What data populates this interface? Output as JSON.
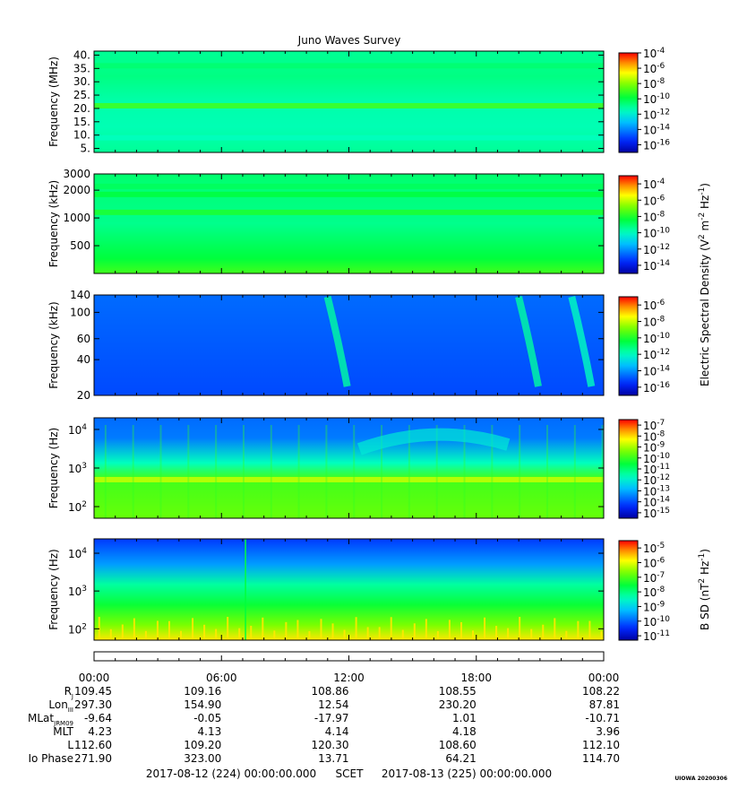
{
  "title": "Juno Waves Survey",
  "colors": {
    "low": "#0000b0",
    "mid": "#00ff40",
    "high": "#ff0000"
  },
  "chart_data": [
    {
      "type": "heatmap",
      "ylabel": "Frequency (MHz)",
      "ylim": [
        3.5,
        41.5
      ],
      "yticks": [
        "5.",
        "10.",
        "15.",
        "20.",
        "25.",
        "30.",
        "35.",
        "40."
      ],
      "ytick_values": [
        5,
        10,
        15,
        20,
        25,
        30,
        35,
        40
      ],
      "yscale": "linear",
      "colorbar": {
        "ticks": [
          "10",
          "10",
          "10",
          "10",
          "10",
          "10",
          "10"
        ],
        "exponents": [
          "-4",
          "-6",
          "-8",
          "-10",
          "-12",
          "-14",
          "-16"
        ],
        "label": "",
        "range_log": [
          -17,
          -4
        ]
      },
      "features": [
        {
          "kind": "band",
          "value": 21,
          "level": 0.62
        },
        {
          "kind": "band",
          "value": 36,
          "level": 0.5
        },
        {
          "kind": "band",
          "value": 9,
          "level": 0.42
        }
      ]
    },
    {
      "type": "heatmap",
      "ylabel": "Frequency (kHz)",
      "ylim": [
        250,
        3000
      ],
      "yticks": [
        "3000",
        "2000",
        "1000",
        "500"
      ],
      "ytick_values": [
        3000,
        2000,
        1000,
        500
      ],
      "yscale": "log",
      "colorbar": {
        "ticks": [
          "10",
          "10",
          "10",
          "10",
          "10",
          "10"
        ],
        "exponents": [
          "-4",
          "-6",
          "-8",
          "-10",
          "-12",
          "-14"
        ],
        "label": "Electric Spectral Density (V2 m-2 Hz-1)",
        "range_log": [
          -15,
          -3
        ]
      },
      "features": [
        {
          "kind": "band",
          "value": 1150,
          "level": 0.58
        },
        {
          "kind": "band",
          "value": 1800,
          "level": 0.55
        },
        {
          "kind": "band",
          "value": 2200,
          "level": 0.52
        }
      ]
    },
    {
      "type": "heatmap",
      "ylabel": "Frequency (kHz)",
      "ylim": [
        20,
        140
      ],
      "yticks": [
        "140",
        "100",
        "60",
        "40",
        "20"
      ],
      "ytick_values": [
        140,
        100,
        60,
        40,
        20
      ],
      "yscale": "log",
      "colorbar": {
        "ticks": [
          "10",
          "10",
          "10",
          "10",
          "10",
          "10"
        ],
        "exponents": [
          "-6",
          "-8",
          "-10",
          "-12",
          "-14",
          "-16"
        ],
        "label": "",
        "range_log": [
          -17,
          -5
        ]
      },
      "features": [
        {
          "kind": "burst",
          "hour": 11.5,
          "level": 0.45
        },
        {
          "kind": "burst",
          "hour": 20.5,
          "level": 0.45
        },
        {
          "kind": "burst",
          "hour": 23.0,
          "level": 0.42
        }
      ]
    },
    {
      "type": "heatmap",
      "ylabel": "Frequency (Hz)",
      "ylim": [
        50,
        20000
      ],
      "yticks": [
        "10",
        "10",
        "10"
      ],
      "ytick_exponents": [
        "4",
        "3",
        "2"
      ],
      "ytick_values": [
        10000,
        1000,
        100
      ],
      "yscale": "log",
      "colorbar": {
        "ticks": [
          "10",
          "10",
          "10",
          "10",
          "10",
          "10",
          "10",
          "10",
          "10"
        ],
        "exponents": [
          "-7",
          "-8",
          "-9",
          "-10",
          "-11",
          "-12",
          "-13",
          "-14",
          "-15"
        ],
        "label": "",
        "range_log": [
          -15.5,
          -6.5
        ]
      },
      "features": [
        {
          "kind": "band",
          "value": 500,
          "level": 0.75
        }
      ]
    },
    {
      "type": "heatmap",
      "ylabel": "Frequency (Hz)",
      "ylim": [
        50,
        24000
      ],
      "yticks": [
        "10",
        "10",
        "10"
      ],
      "ytick_exponents": [
        "4",
        "3",
        "2"
      ],
      "ytick_values": [
        10000,
        1000,
        100
      ],
      "yscale": "log",
      "colorbar": {
        "ticks": [
          "10",
          "10",
          "10",
          "10",
          "10",
          "10",
          "10"
        ],
        "exponents": [
          "-5",
          "-6",
          "-7",
          "-8",
          "-9",
          "-10",
          "-11"
        ],
        "label": "B SD (nT2 Hz-1)",
        "range_log": [
          -11.3,
          -4.5
        ]
      },
      "features": []
    }
  ],
  "time_axis": {
    "labels": [
      "00:00",
      "06:00",
      "12:00",
      "18:00",
      "00:00"
    ],
    "hours": [
      0,
      6,
      12,
      18,
      24
    ],
    "range_hours": [
      0,
      24
    ]
  },
  "ephemeris": [
    {
      "label": "R",
      "sub": "J",
      "values": [
        "109.45",
        "109.16",
        "108.86",
        "108.55",
        "108.22"
      ]
    },
    {
      "label": "Lon",
      "sub": "III",
      "values": [
        "297.30",
        "154.90",
        "12.54",
        "230.20",
        "87.81"
      ]
    },
    {
      "label": "MLat",
      "sub": "JRM09",
      "values": [
        "-9.64",
        "-0.05",
        "-17.97",
        "1.01",
        "-10.71"
      ]
    },
    {
      "label": "MLT",
      "sub": "",
      "values": [
        "4.23",
        "4.13",
        "4.14",
        "4.18",
        "3.96"
      ]
    },
    {
      "label": "L",
      "sub": "",
      "values": [
        "112.60",
        "109.20",
        "120.30",
        "108.60",
        "112.10"
      ]
    },
    {
      "label": "Io Phase",
      "sub": "",
      "values": [
        "271.90",
        "323.00",
        "13.71",
        "64.21",
        "114.70"
      ]
    }
  ],
  "footer": {
    "start": "2017-08-12 (224) 00:00:00.000",
    "scet": "SCET",
    "end": "2017-08-13 (225) 00:00:00.000"
  },
  "stamp": "UIOWA 20200306"
}
